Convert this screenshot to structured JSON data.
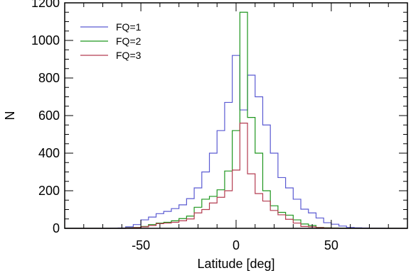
{
  "chart_data": {
    "type": "step",
    "title": "",
    "xlabel": "Latitude [deg]",
    "ylabel": "N",
    "xlim": [
      -90,
      90
    ],
    "ylim": [
      0,
      1200
    ],
    "xticks": [
      -50,
      0,
      50
    ],
    "yticks": [
      0,
      200,
      400,
      600,
      800,
      1000,
      1200
    ],
    "grid": false,
    "legend_position": "top-left",
    "bin_width": 4,
    "bin_edges": [
      -90,
      -86,
      -82,
      -78,
      -74,
      -70,
      -66,
      -62,
      -58,
      -54,
      -50,
      -46,
      -42,
      -38,
      -34,
      -30,
      -26,
      -22,
      -18,
      -14,
      -10,
      -6,
      -2,
      2,
      6,
      10,
      14,
      18,
      22,
      26,
      30,
      34,
      38,
      42,
      46,
      50,
      54,
      58,
      62,
      66,
      70,
      74,
      78,
      82,
      86,
      90
    ],
    "series": [
      {
        "name": "FQ=1",
        "color": "#5a5ad2",
        "values": [
          0,
          0,
          0,
          0,
          0,
          0,
          1,
          2,
          8,
          20,
          45,
          60,
          78,
          90,
          105,
          125,
          158,
          215,
          300,
          400,
          520,
          670,
          920,
          630,
          815,
          700,
          550,
          400,
          270,
          215,
          155,
          102,
          82,
          55,
          30,
          22,
          12,
          5,
          3,
          2,
          1,
          1,
          0,
          0,
          0
        ]
      },
      {
        "name": "FQ=2",
        "color": "#1e961e",
        "values": [
          0,
          0,
          0,
          0,
          0,
          0,
          0,
          0,
          3,
          5,
          10,
          20,
          28,
          32,
          40,
          52,
          65,
          112,
          155,
          170,
          205,
          305,
          520,
          1150,
          590,
          400,
          200,
          120,
          85,
          70,
          45,
          23,
          15,
          5,
          3,
          2,
          1,
          0,
          0,
          0,
          0,
          0,
          0,
          0,
          0
        ]
      },
      {
        "name": "FQ=3",
        "color": "#b43c50",
        "values": [
          0,
          0,
          0,
          0,
          0,
          0,
          0,
          0,
          2,
          4,
          8,
          15,
          25,
          28,
          32,
          40,
          50,
          82,
          100,
          135,
          165,
          200,
          310,
          560,
          290,
          185,
          145,
          95,
          72,
          48,
          28,
          10,
          8,
          4,
          2,
          1,
          0,
          0,
          0,
          0,
          0,
          0,
          0,
          0,
          0
        ]
      }
    ]
  }
}
